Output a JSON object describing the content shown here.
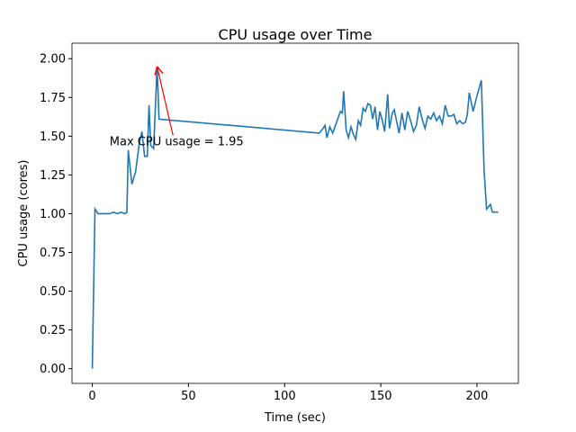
{
  "chart_data": {
    "type": "line",
    "title": "CPU usage over Time",
    "x_label": "Time (sec)",
    "y_label": "CPU usage (cores)",
    "series": [
      {
        "name": "CPU usage",
        "color": "#1f77b4",
        "x": [
          0,
          1.4,
          3,
          5,
          7,
          9,
          11,
          13,
          15,
          17,
          18,
          18.7,
          20.6,
          22.5,
          24.4,
          25.8,
          27.2,
          28.6,
          29.5,
          30.4,
          31.9,
          33.7,
          34.7,
          118,
          120,
          121,
          122,
          123.5,
          125,
          127,
          129,
          130,
          130.7,
          132,
          133.2,
          134.5,
          135.8,
          137,
          138.3,
          139.5,
          140.8,
          142,
          143.3,
          144.6,
          145.8,
          147,
          148.3,
          149.5,
          150.8,
          152,
          153.6,
          154.5,
          156,
          157,
          158,
          159.5,
          161,
          162.5,
          164,
          165.5,
          167,
          168.5,
          170,
          171.5,
          173,
          174.5,
          176,
          177.5,
          179,
          180.5,
          182,
          183.5,
          185,
          186.5,
          188,
          189.5,
          191,
          192.5,
          194,
          195,
          196,
          198,
          200,
          202.3,
          203.7,
          205,
          207,
          208,
          211
        ],
        "values": [
          0,
          1.03,
          1.0,
          1.0,
          1.0,
          1.0,
          1.01,
          1.0,
          1.01,
          1.0,
          1.01,
          1.41,
          1.19,
          1.27,
          1.45,
          1.53,
          1.37,
          1.37,
          1.7,
          1.44,
          1.42,
          1.95,
          1.61,
          1.52,
          1.55,
          1.57,
          1.49,
          1.56,
          1.52,
          1.59,
          1.66,
          1.65,
          1.79,
          1.54,
          1.49,
          1.56,
          1.51,
          1.48,
          1.6,
          1.57,
          1.68,
          1.66,
          1.71,
          1.7,
          1.61,
          1.69,
          1.54,
          1.66,
          1.6,
          1.53,
          1.77,
          1.55,
          1.65,
          1.67,
          1.61,
          1.52,
          1.65,
          1.54,
          1.66,
          1.6,
          1.53,
          1.57,
          1.69,
          1.61,
          1.55,
          1.63,
          1.61,
          1.65,
          1.6,
          1.63,
          1.58,
          1.7,
          1.63,
          1.63,
          1.64,
          1.58,
          1.6,
          1.58,
          1.59,
          1.64,
          1.78,
          1.66,
          1.76,
          1.86,
          1.28,
          1.03,
          1.06,
          1.01,
          1.01
        ]
      }
    ],
    "xlim": [
      -10.55,
      221.55
    ],
    "ylim": [
      -0.095,
      2.1
    ],
    "xticks": [
      0,
      50,
      100,
      150,
      200
    ],
    "yticks": [
      {
        "value": 0,
        "label": "0.00"
      },
      {
        "value": 0.25,
        "label": "0.25"
      },
      {
        "value": 0.5,
        "label": "0.50"
      },
      {
        "value": 0.75,
        "label": "0.75"
      },
      {
        "value": 1,
        "label": "1.00"
      },
      {
        "value": 1.25,
        "label": "1.25"
      },
      {
        "value": 1.5,
        "label": "1.50"
      },
      {
        "value": 1.75,
        "label": "1.75"
      },
      {
        "value": 2,
        "label": "2.00"
      }
    ],
    "annotation": {
      "text": "Max CPU usage = 1.95",
      "xy": [
        33.7,
        1.95
      ],
      "xytext": [
        9,
        1.467
      ],
      "color": "#ff0000"
    }
  }
}
